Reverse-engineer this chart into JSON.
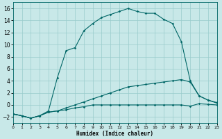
{
  "xlabel": "Humidex (Indice chaleur)",
  "bg_color": "#c8e8e8",
  "grid_color": "#99cccc",
  "line_color": "#006666",
  "xlim": [
    0,
    23
  ],
  "ylim": [
    -3,
    17
  ],
  "xticks": [
    0,
    1,
    2,
    3,
    4,
    5,
    6,
    7,
    8,
    9,
    10,
    11,
    12,
    13,
    14,
    15,
    16,
    17,
    18,
    19,
    20,
    21,
    22,
    23
  ],
  "yticks": [
    -2,
    0,
    2,
    4,
    6,
    8,
    10,
    12,
    14,
    16
  ],
  "curve_main_x": [
    0,
    1,
    2,
    3,
    4,
    5,
    6,
    7,
    8,
    9,
    10,
    11,
    12,
    13,
    14,
    15,
    16,
    17,
    18,
    19,
    20,
    21,
    22,
    23
  ],
  "curve_main_y": [
    -1.5,
    -1.8,
    -2.2,
    -1.8,
    -1.0,
    4.5,
    9.0,
    9.5,
    12.3,
    13.5,
    14.5,
    15.0,
    15.5,
    16.0,
    15.5,
    15.2,
    15.2,
    14.2,
    13.5,
    10.5,
    4.0,
    1.5,
    0.8,
    0.4
  ],
  "curve_mid_x": [
    0,
    1,
    2,
    3,
    4,
    5,
    6,
    7,
    8,
    9,
    10,
    11,
    12,
    13,
    14,
    15,
    16,
    17,
    18,
    19,
    20,
    21,
    22,
    23
  ],
  "curve_mid_y": [
    -1.5,
    -1.8,
    -2.2,
    -1.8,
    -1.2,
    -1.0,
    -0.5,
    0.0,
    0.5,
    1.0,
    1.5,
    2.0,
    2.5,
    3.0,
    3.2,
    3.4,
    3.6,
    3.8,
    4.0,
    4.2,
    3.8,
    1.5,
    0.8,
    0.3
  ],
  "curve_low_x": [
    0,
    1,
    2,
    3,
    4,
    5,
    6,
    7,
    8,
    9,
    10,
    11,
    12,
    13,
    14,
    15,
    16,
    17,
    18,
    19,
    20,
    21,
    22,
    23
  ],
  "curve_low_y": [
    -1.5,
    -1.8,
    -2.2,
    -1.8,
    -1.2,
    -1.0,
    -0.8,
    -0.5,
    -0.3,
    0.0,
    0.0,
    0.0,
    0.0,
    0.0,
    0.0,
    0.0,
    0.0,
    0.0,
    0.0,
    0.0,
    -0.2,
    0.2,
    0.1,
    0.0
  ]
}
